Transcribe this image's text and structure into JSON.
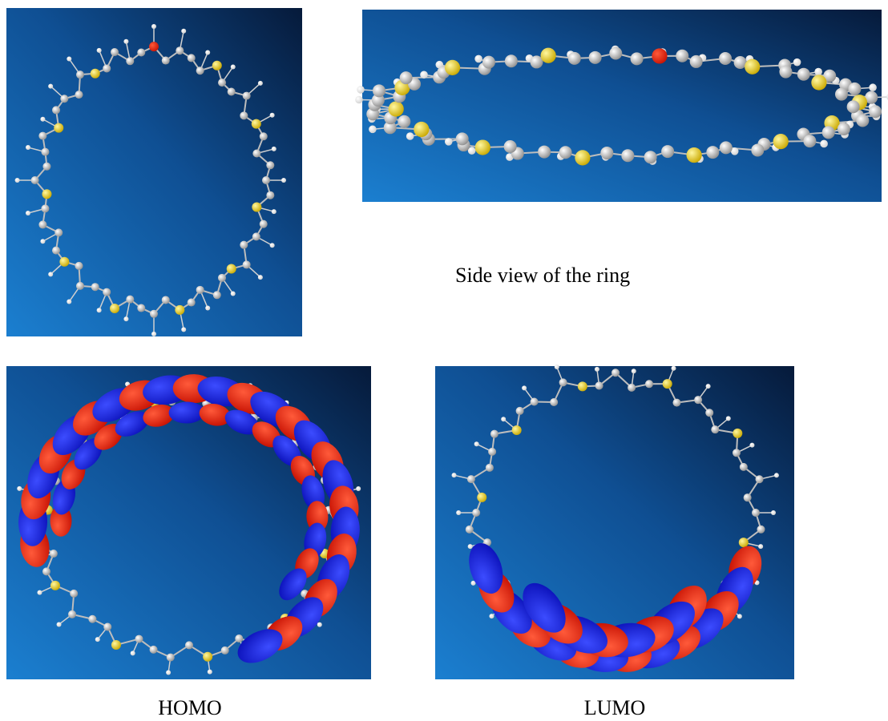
{
  "figure": {
    "side_caption": "Side view of the ring",
    "homo_caption": "HOMO",
    "lumo_caption": "LUMO"
  }
}
